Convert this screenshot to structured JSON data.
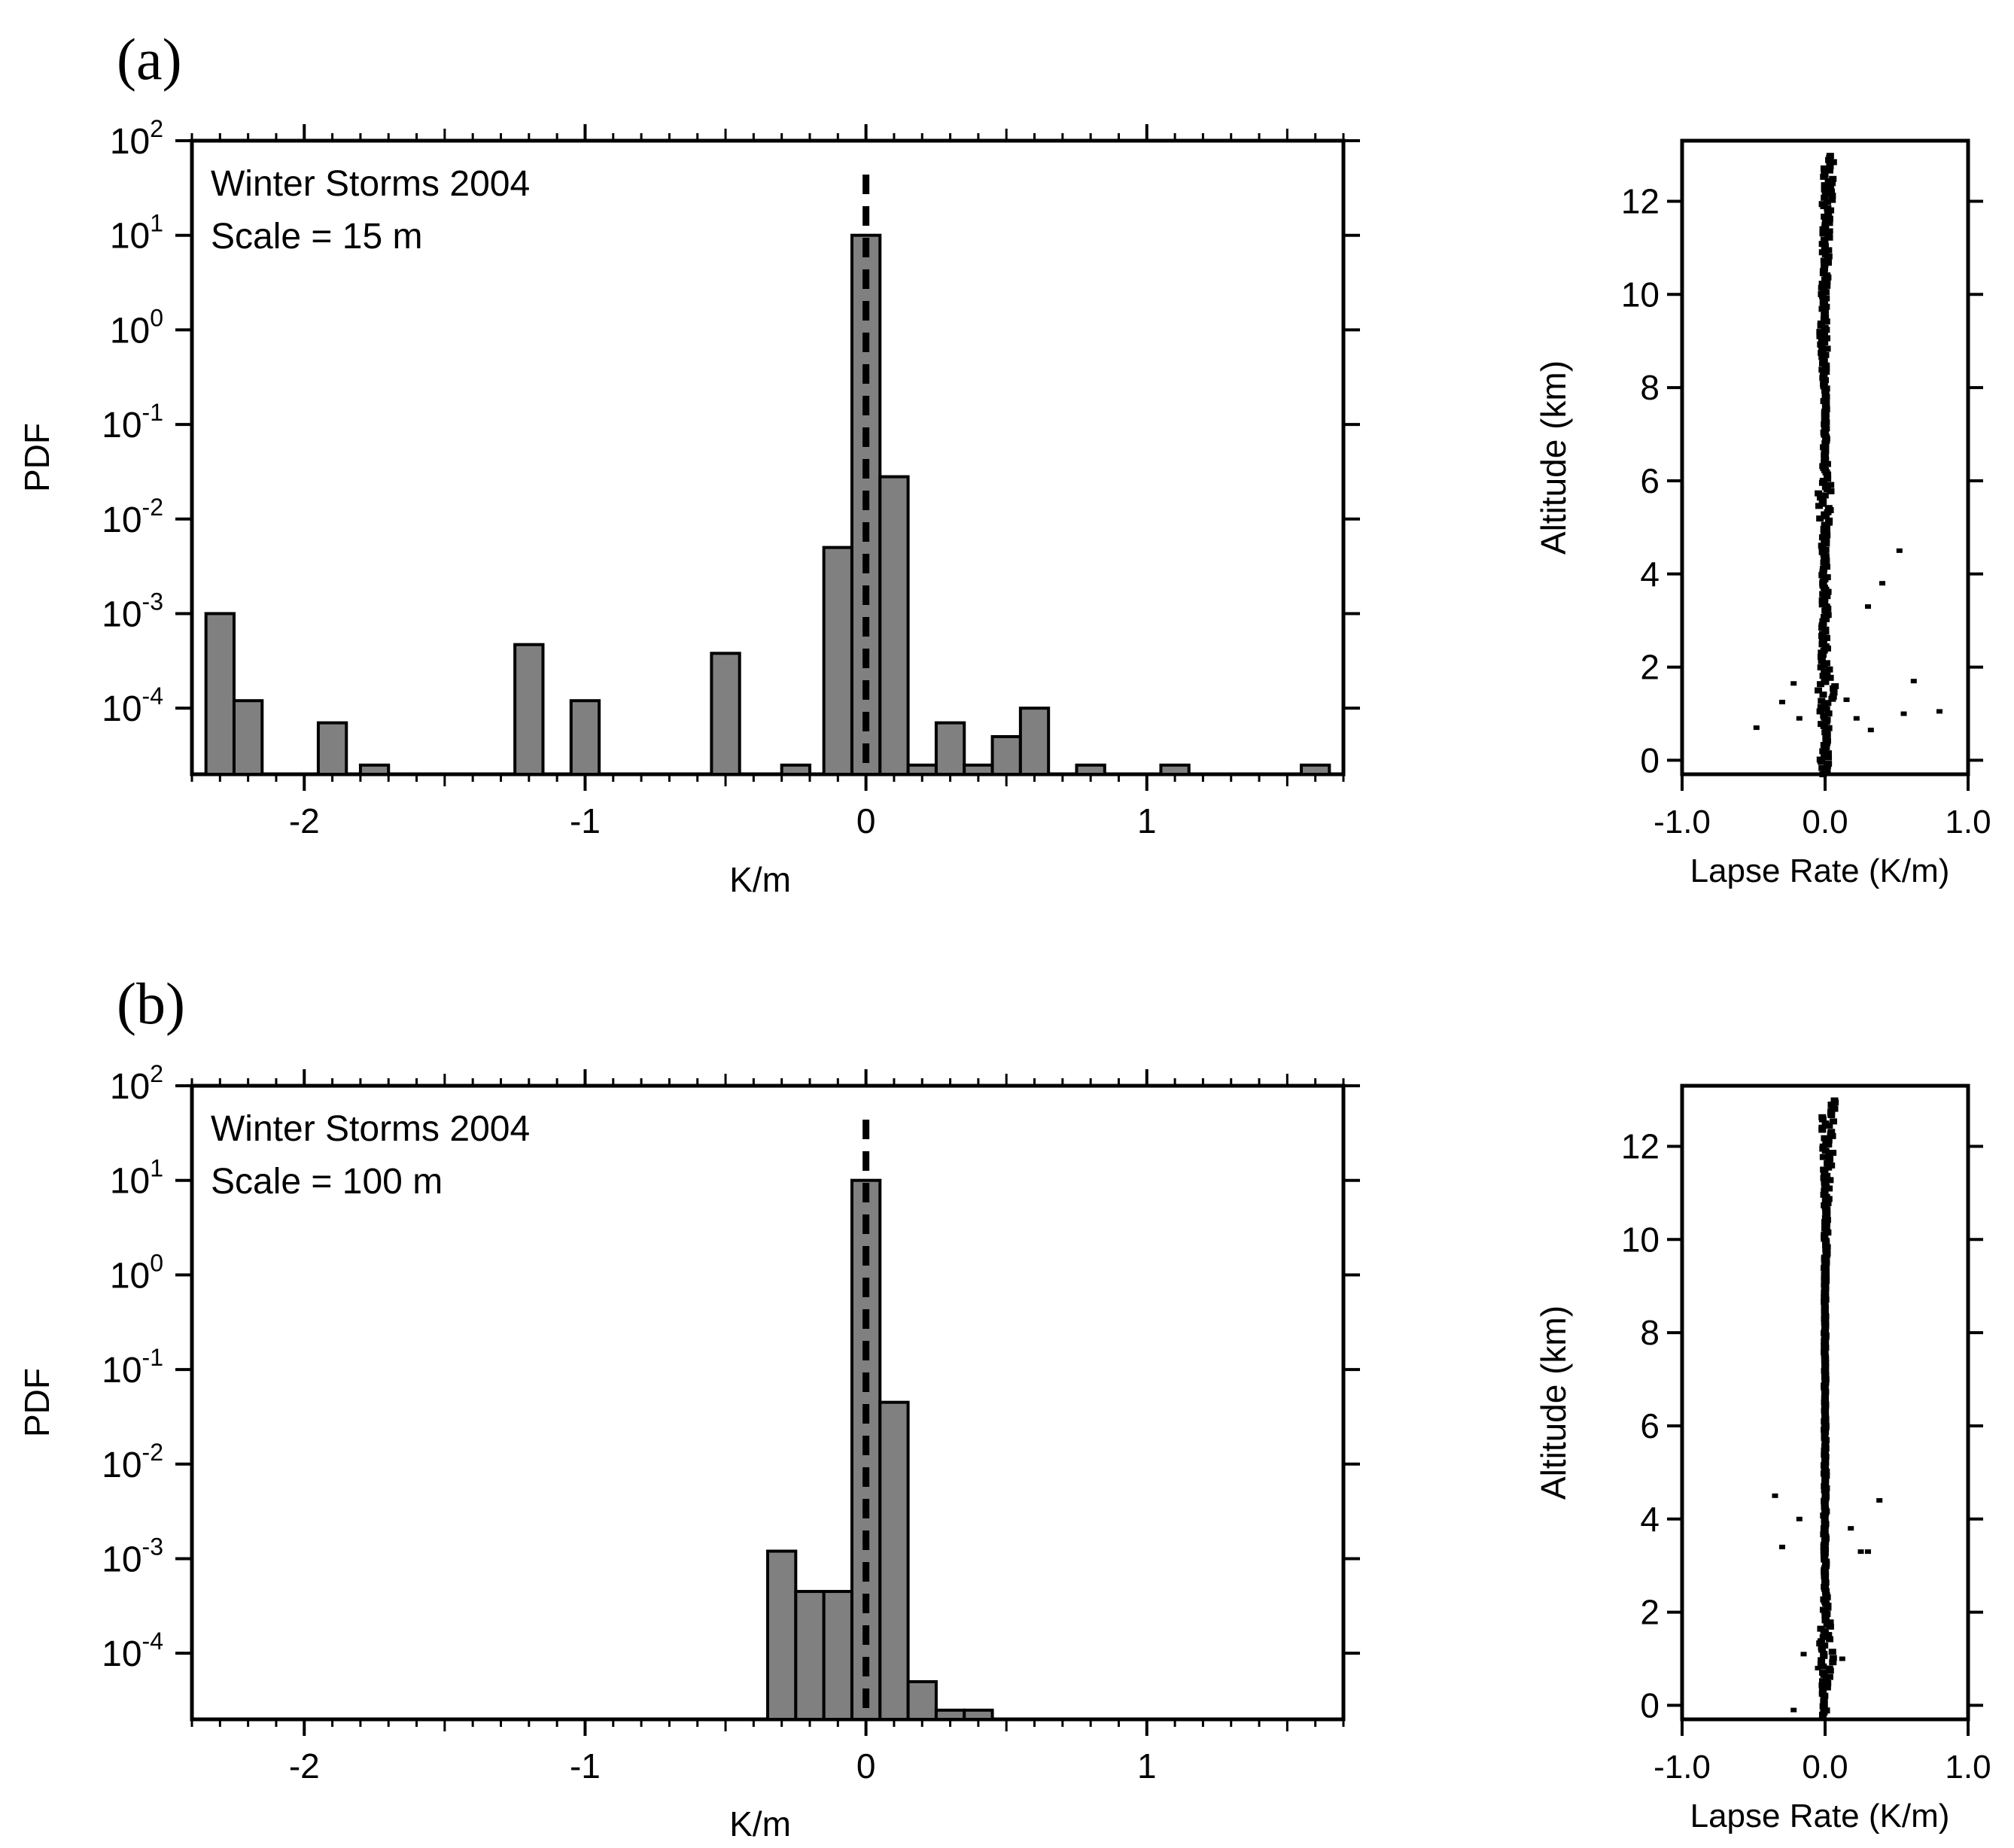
{
  "figure": {
    "panels": [
      {
        "label": "(a)",
        "histogram": {
          "annotation_line1": "Winter Storms 2004",
          "annotation_line2": "Scale  = 15 m"
        }
      },
      {
        "label": "(b)",
        "histogram": {
          "annotation_line1": "Winter Storms 2004",
          "annotation_line2": "Scale  = 100 m"
        }
      }
    ]
  },
  "chart_data": [
    {
      "type": "bar",
      "panel": "(a)",
      "title": "",
      "xlabel": "K/m",
      "ylabel": "PDF",
      "yscale": "log",
      "xlim": [
        -2.4,
        1.7
      ],
      "ylim": [
        2e-05,
        100
      ],
      "x_ticks": [
        -2,
        -1,
        0,
        1
      ],
      "x_tick_labels": [
        "-2",
        "-1",
        "0",
        "1"
      ],
      "y_ticks": [
        100,
        10,
        1,
        0.1,
        0.01,
        0.001,
        0.0001
      ],
      "y_tick_labels": [
        "10^2",
        "10^1",
        "10^0",
        "10^-1",
        "10^-2",
        "10^-3",
        "10^-4"
      ],
      "bin_width": 0.1,
      "bin_centers": [
        -2.3,
        -2.2,
        -1.9,
        -1.75,
        -1.2,
        -1.0,
        -0.5,
        -0.25,
        -0.1,
        0.0,
        0.1,
        0.2,
        0.3,
        0.4,
        0.5,
        0.6,
        0.8,
        1.1,
        1.6
      ],
      "values": [
        0.001,
        0.00012,
        7e-05,
        2.5e-05,
        0.00047,
        0.00012,
        0.00038,
        2.5e-05,
        0.005,
        10,
        0.028,
        2.5e-05,
        7e-05,
        2.5e-05,
        5e-05,
        0.0001,
        2.5e-05,
        2.5e-05,
        2.5e-05
      ],
      "reference_line_x": 0.0,
      "reference_line_style": "dashed",
      "grid": false
    },
    {
      "type": "scatter",
      "panel": "(a)",
      "title": "",
      "xlabel": "Lapse Rate  (K/m)",
      "ylabel": "Altitude  (km)",
      "xlim": [
        -1.0,
        1.0
      ],
      "ylim": [
        -0.3,
        13.3
      ],
      "x_ticks": [
        -1.0,
        0.0,
        1.0
      ],
      "x_tick_labels": [
        "-1.0",
        "0.0",
        "1.0"
      ],
      "y_ticks": [
        0,
        2,
        4,
        6,
        8,
        10,
        12
      ],
      "y_tick_labels": [
        "0",
        "2",
        "4",
        "6",
        "8",
        "10",
        "12"
      ],
      "main_profile": [
        {
          "altitude": 13.0,
          "lapse_rate": 0.02,
          "spread": 0.05
        },
        {
          "altitude": 12.3,
          "lapse_rate": 0.02,
          "spread": 0.04
        },
        {
          "altitude": 11.5,
          "lapse_rate": 0.01,
          "spread": 0.03
        },
        {
          "altitude": 10.5,
          "lapse_rate": 0.0,
          "spread": 0.02
        },
        {
          "altitude": 9.2,
          "lapse_rate": -0.01,
          "spread": 0.03
        },
        {
          "altitude": 8.0,
          "lapse_rate": 0.0,
          "spread": 0.01
        },
        {
          "altitude": 6.5,
          "lapse_rate": 0.0,
          "spread": 0.01
        },
        {
          "altitude": 5.7,
          "lapse_rate": 0.0,
          "spread": 0.05
        },
        {
          "altitude": 4.5,
          "lapse_rate": 0.0,
          "spread": 0.02
        },
        {
          "altitude": 3.0,
          "lapse_rate": 0.0,
          "spread": 0.02
        },
        {
          "altitude": 2.0,
          "lapse_rate": 0.0,
          "spread": 0.03
        },
        {
          "altitude": 1.6,
          "lapse_rate": 0.01,
          "spread": 0.06
        },
        {
          "altitude": 1.0,
          "lapse_rate": 0.0,
          "spread": 0.04
        },
        {
          "altitude": 0.3,
          "lapse_rate": 0.0,
          "spread": 0.02
        },
        {
          "altitude": -0.3,
          "lapse_rate": 0.0,
          "spread": 0.05
        }
      ],
      "outliers": [
        {
          "lapse_rate": -0.48,
          "altitude": 0.7
        },
        {
          "lapse_rate": -0.3,
          "altitude": 1.25
        },
        {
          "lapse_rate": -0.22,
          "altitude": 1.65
        },
        {
          "lapse_rate": -0.18,
          "altitude": 0.9
        },
        {
          "lapse_rate": 0.15,
          "altitude": 1.3
        },
        {
          "lapse_rate": 0.22,
          "altitude": 0.9
        },
        {
          "lapse_rate": 0.3,
          "altitude": 3.3
        },
        {
          "lapse_rate": 0.32,
          "altitude": 0.65
        },
        {
          "lapse_rate": 0.4,
          "altitude": 3.8
        },
        {
          "lapse_rate": 0.52,
          "altitude": 4.5
        },
        {
          "lapse_rate": 0.55,
          "altitude": 1.0
        },
        {
          "lapse_rate": 0.62,
          "altitude": 1.7
        },
        {
          "lapse_rate": 0.8,
          "altitude": 1.05
        }
      ],
      "grid": false
    },
    {
      "type": "bar",
      "panel": "(b)",
      "title": "",
      "xlabel": "K/m",
      "ylabel": "PDF",
      "yscale": "log",
      "xlim": [
        -2.4,
        1.7
      ],
      "ylim": [
        2e-05,
        100
      ],
      "x_ticks": [
        -2,
        -1,
        0,
        1
      ],
      "x_tick_labels": [
        "-2",
        "-1",
        "0",
        "1"
      ],
      "y_ticks": [
        100,
        10,
        1,
        0.1,
        0.01,
        0.001,
        0.0001
      ],
      "y_tick_labels": [
        "10^2",
        "10^1",
        "10^0",
        "10^-1",
        "10^-2",
        "10^-3",
        "10^-4"
      ],
      "bin_width": 0.1,
      "bin_centers": [
        -0.3,
        -0.2,
        -0.1,
        0.0,
        0.1,
        0.2,
        0.3,
        0.4
      ],
      "values": [
        0.0012,
        0.00045,
        0.00045,
        10,
        0.045,
        5e-05,
        2.5e-05,
        2.5e-05
      ],
      "reference_line_x": 0.0,
      "reference_line_style": "dashed",
      "grid": false
    },
    {
      "type": "scatter",
      "panel": "(b)",
      "title": "",
      "xlabel": "Lapse Rate  (K/m)",
      "ylabel": "Altitude  (km)",
      "xlim": [
        -1.0,
        1.0
      ],
      "ylim": [
        -0.3,
        13.3
      ],
      "x_ticks": [
        -1.0,
        0.0,
        1.0
      ],
      "x_tick_labels": [
        "-1.0",
        "0.0",
        "1.0"
      ],
      "y_ticks": [
        0,
        2,
        4,
        6,
        8,
        10,
        12
      ],
      "y_tick_labels": [
        "0",
        "2",
        "4",
        "6",
        "8",
        "10",
        "12"
      ],
      "main_profile": [
        {
          "altitude": 13.0,
          "lapse_rate": 0.03,
          "spread": 0.05
        },
        {
          "altitude": 12.0,
          "lapse_rate": 0.02,
          "spread": 0.04
        },
        {
          "altitude": 11.0,
          "lapse_rate": 0.01,
          "spread": 0.02
        },
        {
          "altitude": 9.0,
          "lapse_rate": 0.0,
          "spread": 0.005
        },
        {
          "altitude": 6.0,
          "lapse_rate": 0.0,
          "spread": 0.005
        },
        {
          "altitude": 4.0,
          "lapse_rate": 0.0,
          "spread": 0.01
        },
        {
          "altitude": 2.5,
          "lapse_rate": 0.0,
          "spread": 0.005
        },
        {
          "altitude": 1.5,
          "lapse_rate": 0.01,
          "spread": 0.05
        },
        {
          "altitude": 1.0,
          "lapse_rate": 0.01,
          "spread": 0.05
        },
        {
          "altitude": 0.4,
          "lapse_rate": 0.0,
          "spread": 0.02
        },
        {
          "altitude": -0.2,
          "lapse_rate": 0.0,
          "spread": 0.02
        }
      ],
      "outliers": [
        {
          "lapse_rate": -0.35,
          "altitude": 4.5
        },
        {
          "lapse_rate": -0.3,
          "altitude": 3.4
        },
        {
          "lapse_rate": -0.18,
          "altitude": 4.0
        },
        {
          "lapse_rate": -0.15,
          "altitude": 1.1
        },
        {
          "lapse_rate": -0.05,
          "altitude": 0.8
        },
        {
          "lapse_rate": -0.22,
          "altitude": -0.1
        },
        {
          "lapse_rate": 0.18,
          "altitude": 3.8
        },
        {
          "lapse_rate": 0.25,
          "altitude": 3.3
        },
        {
          "lapse_rate": 0.3,
          "altitude": 3.3
        },
        {
          "lapse_rate": 0.38,
          "altitude": 4.4
        },
        {
          "lapse_rate": 0.12,
          "altitude": 1.0
        }
      ],
      "grid": false
    }
  ]
}
